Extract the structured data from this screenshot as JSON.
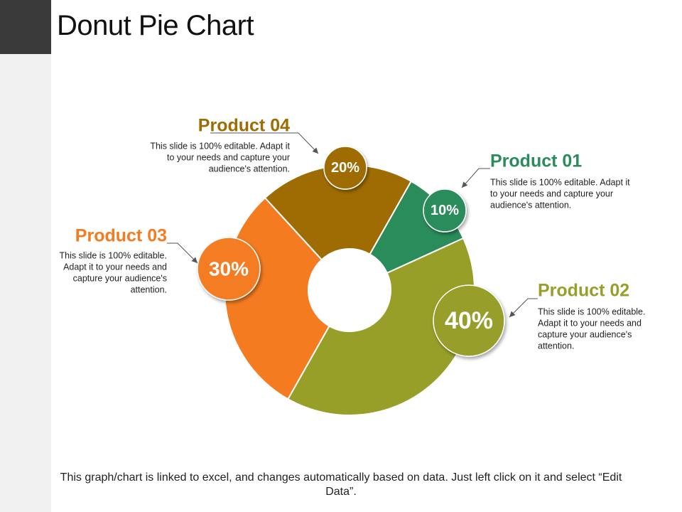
{
  "slide": {
    "title": "Donut Pie Chart",
    "footer": "This graph/chart is linked to excel, and changes automatically based on data. Just left click on it and select “Edit Data”."
  },
  "chart_data": {
    "type": "pie",
    "donut": true,
    "title": "",
    "unit": "%",
    "slices": [
      {
        "name": "Product 01",
        "value": 10,
        "label": "10%",
        "color": "#2a8c5a",
        "description": [
          "This slide is 100% editable. Adapt it",
          "to your needs and capture your",
          "audience's attention."
        ]
      },
      {
        "name": "Product 02",
        "value": 40,
        "label": "40%",
        "color": "#979f29",
        "description": [
          "This slide is 100% editable.",
          "Adapt it to your needs and",
          "capture your audience's",
          "attention."
        ]
      },
      {
        "name": "Product 03",
        "value": 30,
        "label": "30%",
        "color": "#f47b20",
        "description": [
          "This slide is 100% editable.",
          "Adapt it to your needs and",
          "capture your audience's",
          "attention."
        ]
      },
      {
        "name": "Product 04",
        "value": 20,
        "label": "20%",
        "color": "#9e6c02",
        "description": [
          "This slide is 100% editable. Adapt it",
          "to your needs and capture your",
          "audience's attention."
        ]
      }
    ]
  }
}
